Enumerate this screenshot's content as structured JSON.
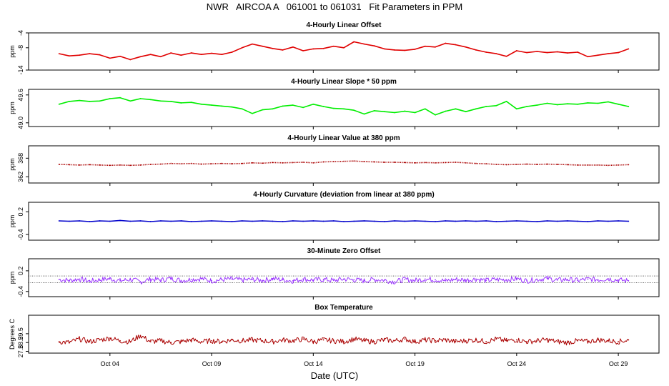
{
  "title": "NWR   AIRCOA A   061001 to 061031   Fit Parameters in PPM",
  "x_axis_label": "Date (UTC)",
  "chart_data": [
    {
      "type": "line",
      "title": "4-Hourly Linear Offset",
      "ylabel": "ppm",
      "ylim": [
        -14,
        -4
      ],
      "yticks": [
        "-4",
        "-8",
        "-14"
      ],
      "ytick_values": [
        -4,
        -8,
        -14
      ],
      "color": "#e00000",
      "style": "line",
      "series": [
        {
          "x": [
            1.5,
            2,
            2.5,
            3,
            3.5,
            4,
            4.5,
            5,
            5.5,
            6,
            6.5,
            7,
            7.5,
            8,
            8.5,
            9,
            9.5,
            10,
            10.5,
            11,
            11.5,
            12,
            12.5,
            13,
            13.5,
            14,
            14.5,
            15,
            15.5,
            16,
            16.5,
            17,
            17.5,
            18,
            18.5,
            19,
            19.5,
            20,
            20.5,
            21,
            21.5,
            22,
            22.5,
            23,
            23.5,
            24,
            24.5,
            25,
            25.5,
            26,
            26.5,
            27,
            27.5,
            28,
            28.5,
            29,
            29.5
          ],
          "y": [
            -9.6,
            -10.2,
            -10.0,
            -9.6,
            -9.9,
            -10.8,
            -10.3,
            -11.2,
            -10.4,
            -9.8,
            -10.4,
            -9.4,
            -10.0,
            -9.4,
            -9.8,
            -9.5,
            -9.8,
            -9.2,
            -8.0,
            -7.0,
            -7.6,
            -8.2,
            -8.6,
            -7.8,
            -8.8,
            -8.3,
            -8.2,
            -7.6,
            -8.0,
            -6.4,
            -7.0,
            -7.5,
            -8.3,
            -8.6,
            -8.7,
            -8.4,
            -7.6,
            -7.8,
            -6.8,
            -7.2,
            -7.8,
            -8.6,
            -9.2,
            -9.6,
            -10.3,
            -8.8,
            -9.3,
            -9.0,
            -9.3,
            -9.1,
            -9.4,
            -9.2,
            -10.4,
            -10.0,
            -9.6,
            -9.3,
            -8.3
          ]
        }
      ]
    },
    {
      "type": "line",
      "title": "4-Hourly Linear Slope * 50 ppm",
      "ylabel": "ppm",
      "ylim": [
        48.92,
        49.72
      ],
      "yticks": [
        "49.6",
        "49.0"
      ],
      "ytick_values": [
        49.6,
        49.0
      ],
      "color": "#00ee00",
      "style": "line",
      "series": [
        {
          "x": [
            1.5,
            2,
            2.5,
            3,
            3.5,
            4,
            4.5,
            5,
            5.5,
            6,
            6.5,
            7,
            7.5,
            8,
            8.5,
            9,
            9.5,
            10,
            10.5,
            11,
            11.5,
            12,
            12.5,
            13,
            13.5,
            14,
            14.5,
            15,
            15.5,
            16,
            16.5,
            17,
            17.5,
            18,
            18.5,
            19,
            19.5,
            20,
            20.5,
            21,
            21.5,
            22,
            22.5,
            23,
            23.5,
            24,
            24.5,
            25,
            25.5,
            26,
            26.5,
            27,
            27.5,
            28,
            28.5,
            29,
            29.5
          ],
          "y": [
            49.4,
            49.46,
            49.48,
            49.46,
            49.47,
            49.52,
            49.54,
            49.47,
            49.52,
            49.5,
            49.47,
            49.46,
            49.43,
            49.44,
            49.4,
            49.38,
            49.36,
            49.34,
            49.3,
            49.2,
            49.28,
            49.3,
            49.36,
            49.38,
            49.33,
            49.4,
            49.35,
            49.31,
            49.3,
            49.27,
            49.19,
            49.26,
            49.24,
            49.22,
            49.25,
            49.22,
            49.3,
            49.17,
            49.25,
            49.3,
            49.24,
            49.3,
            49.35,
            49.37,
            49.46,
            49.3,
            49.35,
            49.38,
            49.42,
            49.39,
            49.41,
            49.4,
            49.43,
            49.42,
            49.45,
            49.4,
            49.35
          ]
        }
      ]
    },
    {
      "type": "line",
      "title": "4-Hourly Linear Value at 380 ppm",
      "ylabel": "ppm",
      "ylim": [
        360,
        372
      ],
      "yticks": [
        "368",
        "362"
      ],
      "ytick_values": [
        368,
        362
      ],
      "color": "#aa0000",
      "style": "dotted",
      "series": [
        {
          "x": [
            1.5,
            2,
            2.5,
            3,
            3.5,
            4,
            4.5,
            5,
            5.5,
            6,
            6.5,
            7,
            7.5,
            8,
            8.5,
            9,
            9.5,
            10,
            10.5,
            11,
            11.5,
            12,
            12.5,
            13,
            13.5,
            14,
            14.5,
            15,
            15.5,
            16,
            16.5,
            17,
            17.5,
            18,
            18.5,
            19,
            19.5,
            20,
            20.5,
            21,
            21.5,
            22,
            22.5,
            23,
            23.5,
            24,
            24.5,
            25,
            25.5,
            26,
            26.5,
            27,
            27.5,
            28,
            28.5,
            29,
            29.5
          ],
          "y": [
            366.0,
            365.9,
            365.8,
            365.9,
            365.8,
            365.7,
            365.8,
            365.7,
            365.8,
            366.0,
            366.1,
            366.3,
            366.2,
            366.3,
            366.1,
            366.2,
            366.3,
            366.2,
            366.3,
            366.5,
            366.4,
            366.6,
            366.5,
            366.6,
            366.7,
            366.5,
            366.8,
            366.9,
            367.0,
            367.1,
            366.9,
            366.8,
            366.7,
            366.7,
            366.6,
            366.5,
            366.6,
            366.5,
            366.6,
            366.7,
            366.5,
            366.3,
            366.2,
            366.0,
            365.9,
            366.0,
            366.1,
            366.0,
            366.1,
            366.0,
            365.9,
            365.8,
            365.8,
            365.8,
            365.7,
            365.8,
            365.9
          ]
        }
      ]
    },
    {
      "type": "line",
      "title": "4-Hourly Curvature (deviation from linear at 380 ppm)",
      "ylabel": "ppm",
      "ylim": [
        -0.55,
        0.45
      ],
      "yticks": [
        "0.2",
        "-0.4"
      ],
      "ytick_values": [
        0.2,
        -0.4
      ],
      "color": "#0000cc",
      "style": "line",
      "series": [
        {
          "x": [
            1.5,
            2,
            2.5,
            3,
            3.5,
            4,
            4.5,
            5,
            5.5,
            6,
            6.5,
            7,
            7.5,
            8,
            8.5,
            9,
            9.5,
            10,
            10.5,
            11,
            11.5,
            12,
            12.5,
            13,
            13.5,
            14,
            14.5,
            15,
            15.5,
            16,
            16.5,
            17,
            17.5,
            18,
            18.5,
            19,
            19.5,
            20,
            20.5,
            21,
            21.5,
            22,
            22.5,
            23,
            23.5,
            24,
            24.5,
            25,
            25.5,
            26,
            26.5,
            27,
            27.5,
            28,
            28.5,
            29,
            29.5
          ],
          "y": [
            -0.04,
            -0.05,
            -0.04,
            -0.06,
            -0.04,
            -0.05,
            -0.03,
            -0.05,
            -0.04,
            -0.06,
            -0.04,
            -0.05,
            -0.04,
            -0.06,
            -0.05,
            -0.04,
            -0.05,
            -0.06,
            -0.04,
            -0.05,
            -0.04,
            -0.05,
            -0.06,
            -0.04,
            -0.05,
            -0.04,
            -0.05,
            -0.04,
            -0.06,
            -0.05,
            -0.04,
            -0.05,
            -0.06,
            -0.04,
            -0.05,
            -0.04,
            -0.05,
            -0.06,
            -0.04,
            -0.05,
            -0.04,
            -0.05,
            -0.04,
            -0.06,
            -0.05,
            -0.04,
            -0.05,
            -0.06,
            -0.04,
            -0.05,
            -0.04,
            -0.05,
            -0.06,
            -0.04,
            -0.05,
            -0.04,
            -0.05
          ]
        }
      ]
    },
    {
      "type": "line",
      "title": "30-Minute Zero Offset",
      "ylabel": "ppm",
      "ylim": [
        -0.55,
        0.55
      ],
      "yticks": [
        "0.2",
        "-0.4"
      ],
      "ytick_values": [
        0.2,
        -0.4
      ],
      "reference_lines": [
        0.05,
        -0.15
      ],
      "color": "#9933ff",
      "style": "noisy",
      "series": [
        {
          "x": [
            1.5,
            2,
            2.5,
            3,
            3.5,
            4,
            4.5,
            5,
            5.5,
            6,
            6.5,
            7,
            7.5,
            8,
            8.5,
            9,
            9.5,
            10,
            10.5,
            11,
            11.5,
            12,
            12.5,
            13,
            13.5,
            14,
            14.5,
            15,
            15.5,
            16,
            16.5,
            17,
            17.5,
            18,
            18.5,
            19,
            19.5,
            20,
            20.5,
            21,
            21.5,
            22,
            22.5,
            23,
            23.5,
            24,
            24.5,
            25,
            25.5,
            26,
            26.5,
            27,
            27.5,
            28,
            28.5,
            29,
            29.5
          ],
          "y": [
            -0.05,
            -0.08,
            -0.04,
            -0.1,
            -0.06,
            -0.03,
            -0.09,
            -0.05,
            -0.12,
            -0.04,
            -0.07,
            -0.02,
            -0.08,
            -0.05,
            -0.03,
            -0.09,
            -0.06,
            -0.04,
            -0.07,
            -0.05,
            -0.08,
            -0.03,
            -0.06,
            -0.09,
            -0.04,
            -0.07,
            -0.05,
            -0.08,
            -0.04,
            -0.06,
            -0.09,
            -0.05,
            -0.07,
            -0.12,
            -0.05,
            -0.08,
            -0.04,
            -0.06,
            -0.09,
            -0.05,
            -0.07,
            -0.04,
            -0.08,
            -0.05,
            -0.06,
            -0.03,
            -0.09,
            -0.05,
            -0.02,
            -0.07,
            -0.05,
            -0.08,
            -0.04,
            -0.06,
            -0.03,
            -0.07,
            -0.09
          ]
        }
      ]
    },
    {
      "type": "line",
      "title": "Box Temperature",
      "ylabel": "Degrees C",
      "ylim": [
        27.3,
        31.6
      ],
      "yticks": [
        "29.5",
        "28.5",
        "27.5"
      ],
      "ytick_values": [
        29.5,
        28.5,
        27.5
      ],
      "color": "#aa0000",
      "style": "noisy",
      "series": [
        {
          "x": [
            1.5,
            2,
            2.5,
            3,
            3.5,
            4,
            4.5,
            5,
            5.5,
            6,
            6.5,
            7,
            7.5,
            8,
            8.5,
            9,
            9.5,
            10,
            10.5,
            11,
            11.5,
            12,
            12.5,
            13,
            13.5,
            14,
            14.5,
            15,
            15.5,
            16,
            16.5,
            17,
            17.5,
            18,
            18.5,
            19,
            19.5,
            20,
            20.5,
            21,
            21.5,
            22,
            22.5,
            23,
            23.5,
            24,
            24.5,
            25,
            25.5,
            26,
            26.5,
            27,
            27.5,
            28,
            28.5,
            29,
            29.5
          ],
          "y": [
            28.6,
            28.5,
            28.9,
            28.6,
            28.8,
            29.0,
            28.7,
            28.6,
            29.3,
            28.6,
            28.7,
            28.5,
            28.6,
            28.8,
            28.6,
            28.7,
            28.6,
            28.8,
            28.7,
            28.8,
            28.7,
            28.6,
            28.8,
            28.7,
            28.9,
            28.6,
            28.8,
            28.7,
            28.6,
            28.9,
            28.7,
            28.6,
            28.8,
            28.7,
            28.9,
            28.6,
            28.8,
            28.7,
            28.8,
            28.6,
            28.7,
            28.8,
            28.6,
            28.9,
            28.7,
            28.8,
            28.6,
            28.7,
            28.8,
            28.6,
            28.5,
            28.7,
            28.6,
            28.8,
            28.7,
            28.6,
            28.8
          ]
        }
      ]
    }
  ],
  "x_axis": {
    "xlim": [
      0,
      31
    ],
    "ticks": [
      {
        "label": "Oct 04",
        "value": 4
      },
      {
        "label": "Oct 09",
        "value": 9
      },
      {
        "label": "Oct 14",
        "value": 14
      },
      {
        "label": "Oct 19",
        "value": 19
      },
      {
        "label": "Oct 24",
        "value": 24
      },
      {
        "label": "Oct 29",
        "value": 29
      }
    ]
  }
}
